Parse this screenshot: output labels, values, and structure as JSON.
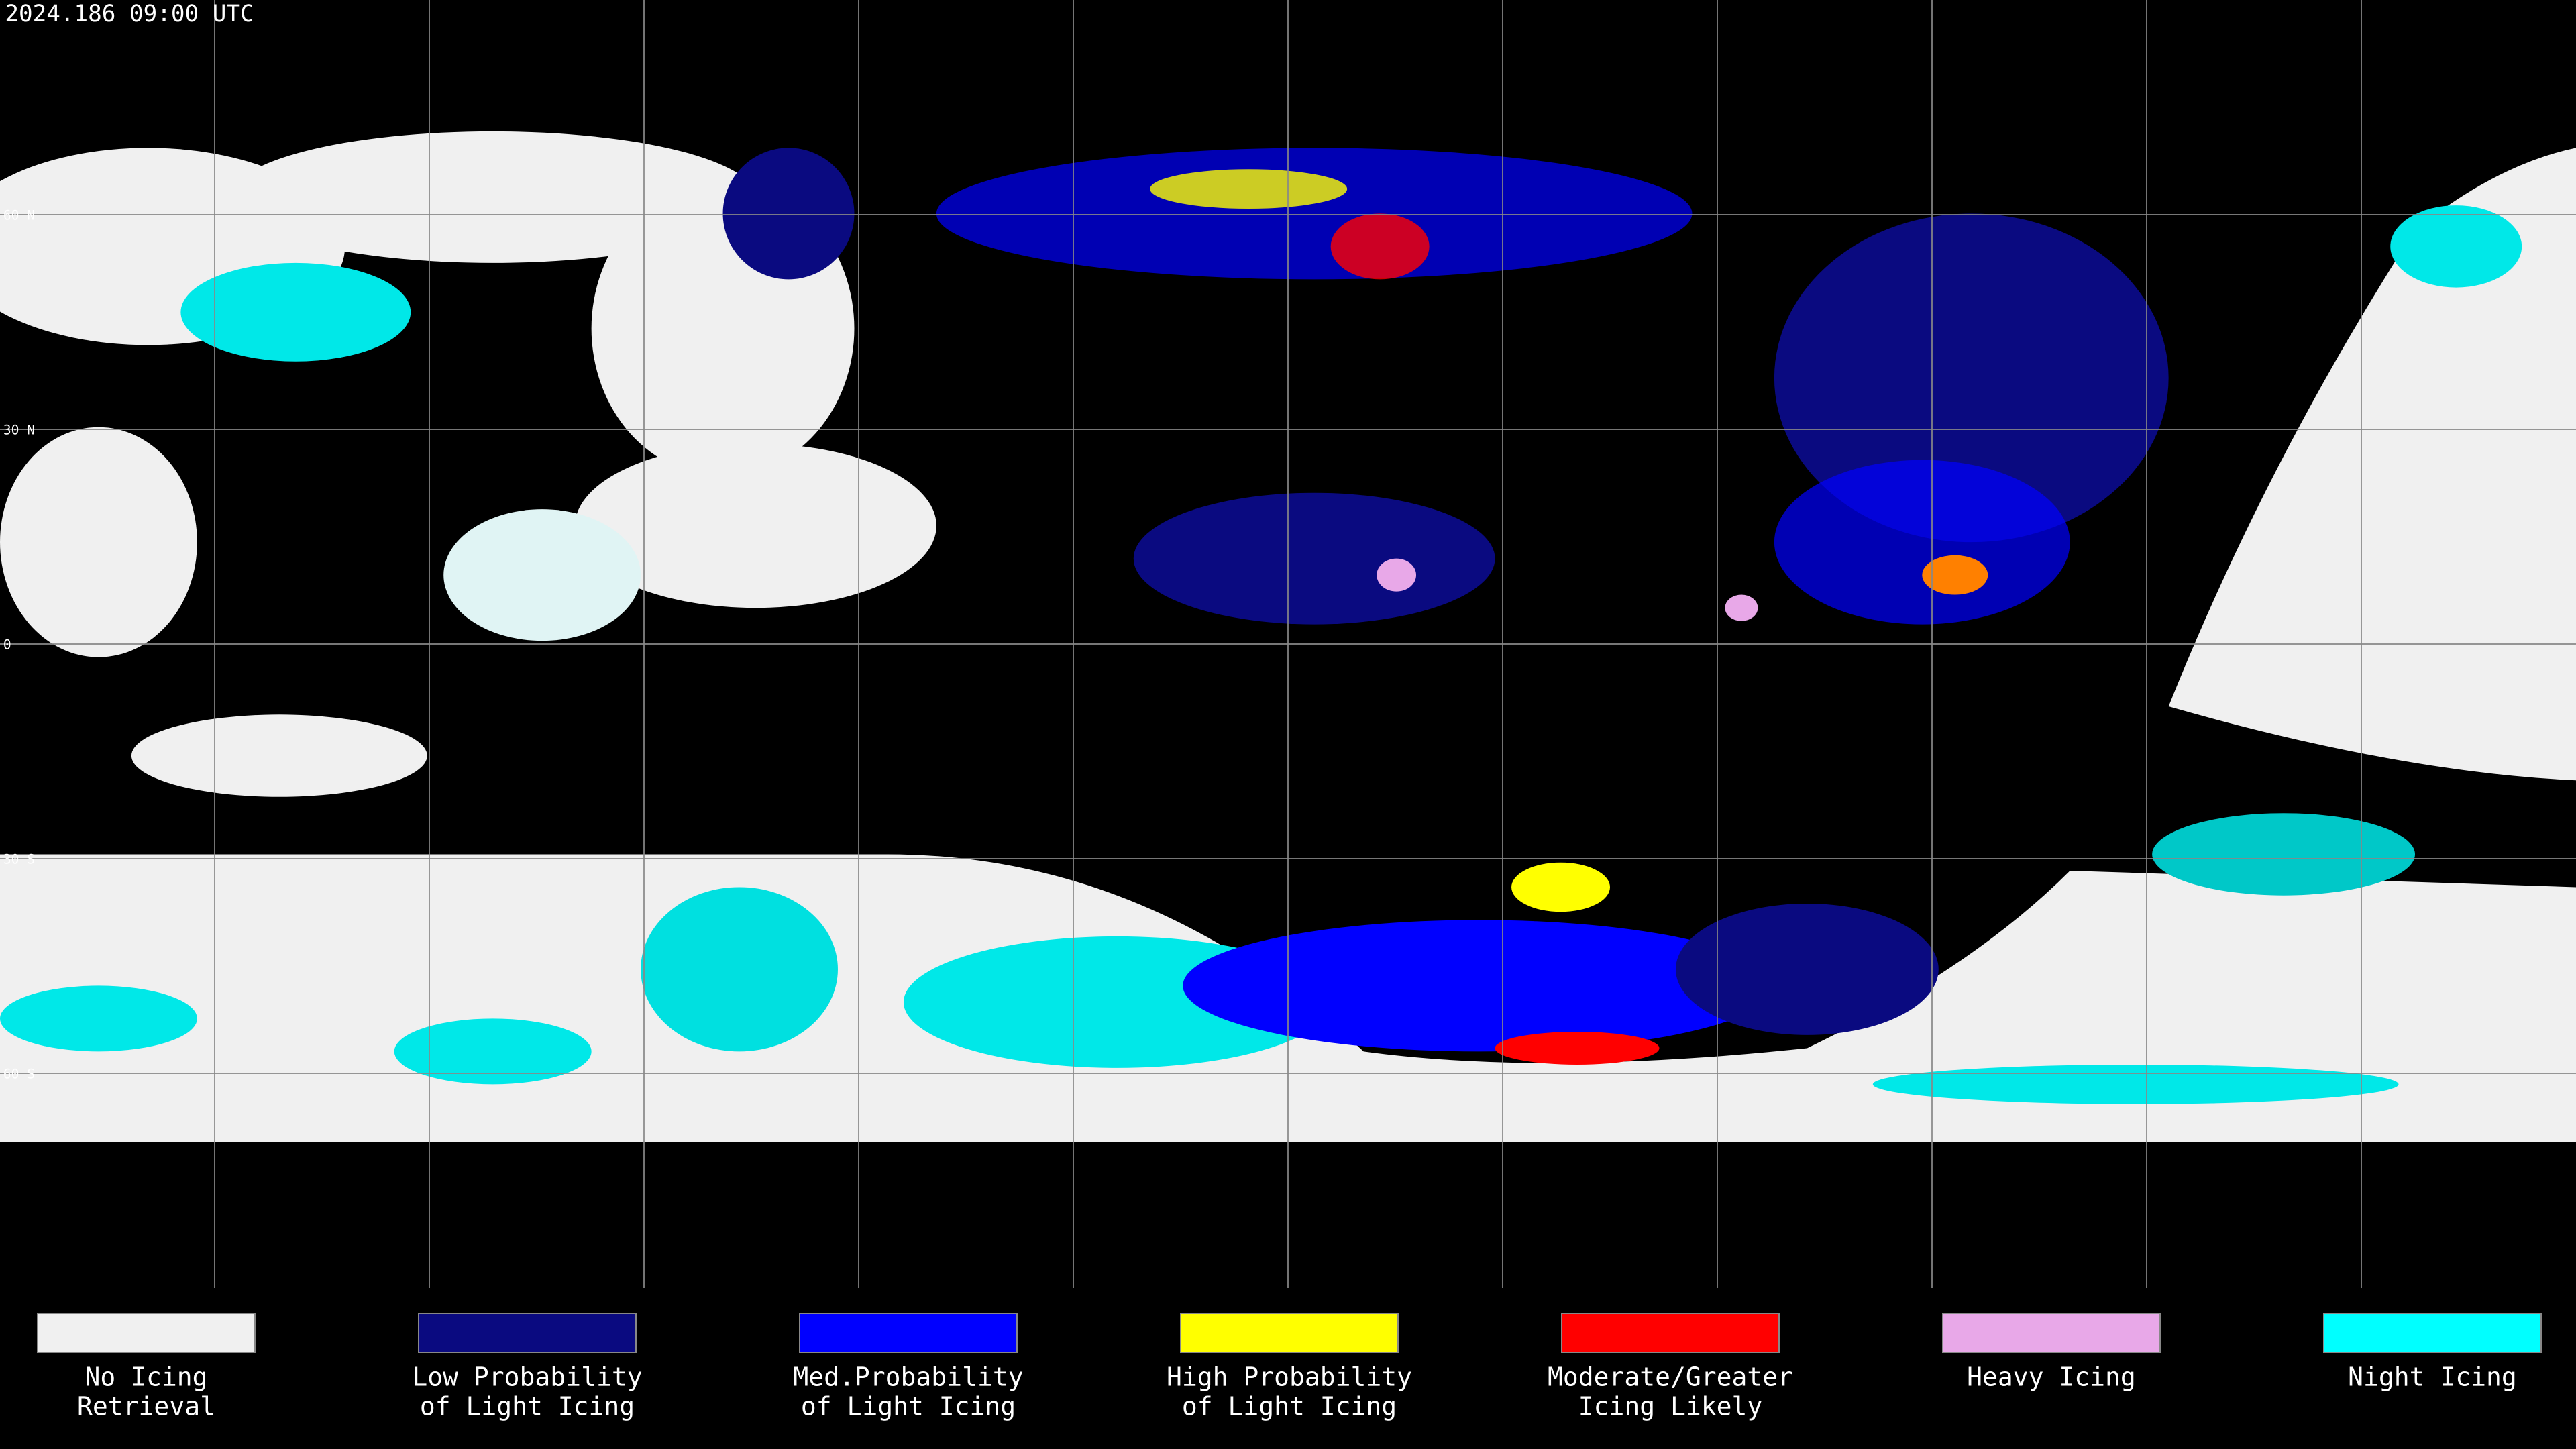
{
  "header": {
    "timestamp": "2024.186 09:00 UTC"
  },
  "map": {
    "latitude_labels": [
      "60 N",
      "30 N",
      "0",
      "30 S",
      "60 S"
    ]
  },
  "legend": {
    "items": [
      {
        "label": [
          "No Icing",
          "Retrieval"
        ],
        "color": "#f0f0f0"
      },
      {
        "label": [
          "Low Probability",
          "of Light Icing"
        ],
        "color": "#0a0a80"
      },
      {
        "label": [
          "Med.Probability",
          "of Light Icing"
        ],
        "color": "#0000ff"
      },
      {
        "label": [
          "High Probability",
          "of Light Icing"
        ],
        "color": "#ffff00"
      },
      {
        "label": [
          "Moderate/Greater",
          "Icing Likely"
        ],
        "color": "#ff0000"
      },
      {
        "label": [
          "Heavy Icing"
        ],
        "color": "#e8a8e8"
      },
      {
        "label": [
          "Night Icing"
        ],
        "color": "#00ffff"
      }
    ]
  }
}
